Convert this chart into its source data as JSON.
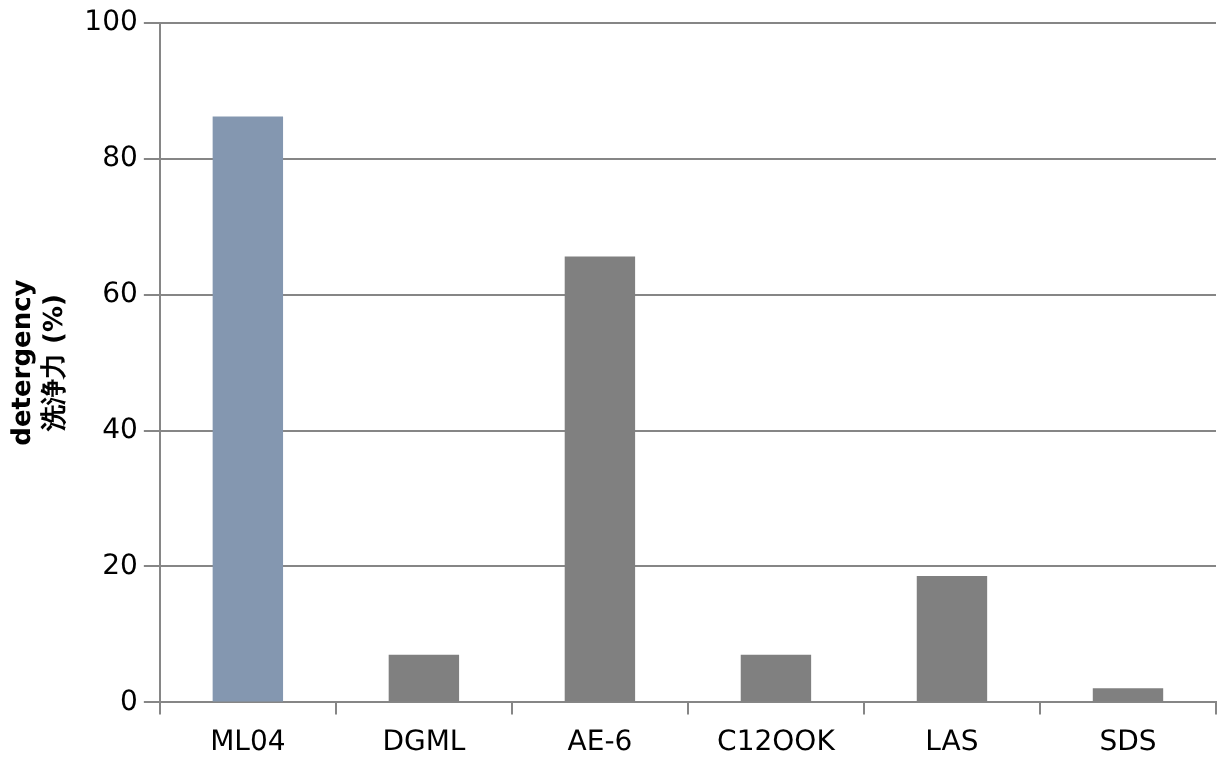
{
  "chart_data": {
    "type": "bar",
    "ylabel": "detergency\n洗浄力 (%)",
    "categories": [
      "ML04",
      "DGML",
      "AE-6",
      "C12OOK",
      "LAS",
      "SDS"
    ],
    "values": [
      86.2,
      7,
      65.6,
      7,
      18.6,
      2.1
    ],
    "colors": [
      "#8497b0",
      "#808080",
      "#808080",
      "#808080",
      "#808080",
      "#808080"
    ],
    "ylim": [
      0,
      100
    ],
    "yticks": [
      0,
      20,
      40,
      60,
      80,
      100
    ],
    "grid": "y",
    "legend": false
  }
}
